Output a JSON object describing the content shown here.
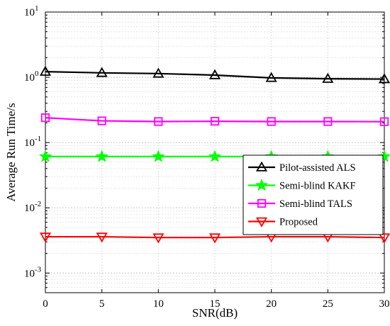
{
  "chart_data": {
    "type": "line",
    "xlabel": "SNR(dB)",
    "ylabel": "Average Run Time/s",
    "x": [
      0,
      5,
      10,
      15,
      20,
      25,
      30
    ],
    "xlim": [
      0,
      30
    ],
    "ylim": [
      0.0005,
      10
    ],
    "yscale": "log",
    "x_ticks": [
      "0",
      "5",
      "10",
      "15",
      "20",
      "25",
      "30"
    ],
    "y_ticks": [
      {
        "value": 10,
        "base": "10",
        "exp": "1"
      },
      {
        "value": 1,
        "base": "10",
        "exp": "0"
      },
      {
        "value": 0.1,
        "base": "10",
        "exp": "-1"
      },
      {
        "value": 0.01,
        "base": "10",
        "exp": "-2"
      },
      {
        "value": 0.001,
        "base": "10",
        "exp": "-3"
      }
    ],
    "grid": true,
    "legend_position": "center-right",
    "series": [
      {
        "name": "Pilot-assisted ALS",
        "color": "#000000",
        "marker": "triangle-up",
        "values": [
          1.22,
          1.17,
          1.14,
          1.08,
          0.98,
          0.95,
          0.94
        ]
      },
      {
        "name": "Semi-blind KAKF",
        "color": "#00ff00",
        "marker": "star",
        "values": [
          0.061,
          0.061,
          0.061,
          0.061,
          0.061,
          0.061,
          0.061
        ]
      },
      {
        "name": "Semi-blind TALS",
        "color": "#ff00ff",
        "marker": "square",
        "values": [
          0.24,
          0.215,
          0.21,
          0.212,
          0.21,
          0.21,
          0.209
        ]
      },
      {
        "name": "Proposed",
        "color": "#ff0000",
        "marker": "triangle-down",
        "values": [
          0.0036,
          0.0036,
          0.0035,
          0.0035,
          0.0036,
          0.0036,
          0.0035
        ]
      }
    ]
  }
}
